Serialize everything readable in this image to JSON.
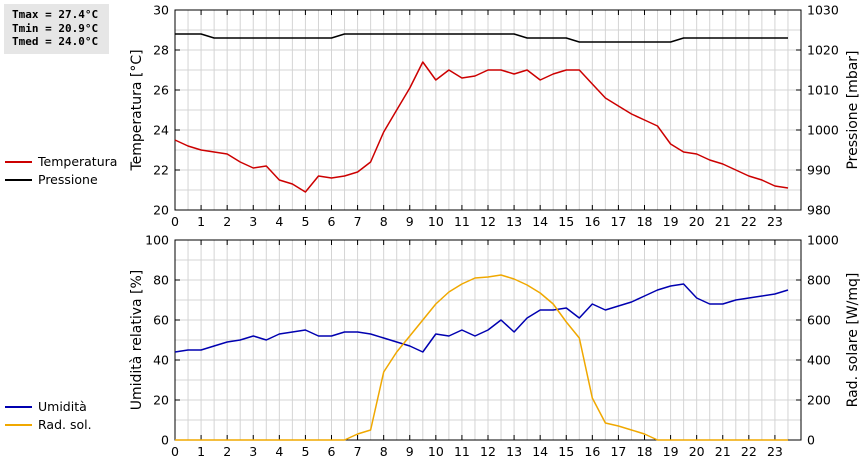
{
  "stats": {
    "tmax": "Tmax = 27.4°C",
    "tmin": "Tmin = 20.9°C",
    "tmed": "Tmed = 24.0°C"
  },
  "colors": {
    "temperatura": "#cc0000",
    "pressione": "#000000",
    "umidita": "#0000b0",
    "radiazione": "#f0a800",
    "grid": "#d4d4d4"
  },
  "chart_data": [
    {
      "type": "line",
      "xlim": [
        0,
        24
      ],
      "xticks": [
        0,
        1,
        2,
        3,
        4,
        5,
        6,
        7,
        8,
        9,
        10,
        11,
        12,
        13,
        14,
        15,
        16,
        17,
        18,
        19,
        20,
        21,
        22,
        23
      ],
      "ylabel_left": "Temperatura [°C]",
      "ylabel_right": "Pressione [mbar]",
      "ylim_left": [
        20,
        30
      ],
      "yticks_left": [
        20,
        22,
        24,
        26,
        28,
        30
      ],
      "ylim_right": [
        980,
        1030
      ],
      "yticks_right": [
        980,
        990,
        1000,
        1010,
        1020,
        1030
      ],
      "legend_placement": "left",
      "grid": true,
      "series": [
        {
          "name": "Temperatura",
          "axis": "left",
          "color": "#cc0000",
          "x": [
            0,
            0.5,
            1,
            1.5,
            2,
            2.5,
            3,
            3.5,
            4,
            4.5,
            5,
            5.5,
            6,
            6.5,
            7,
            7.5,
            8,
            8.5,
            9,
            9.5,
            10,
            10.5,
            11,
            11.5,
            12,
            12.5,
            13,
            13.5,
            14,
            14.5,
            15,
            15.5,
            16,
            16.5,
            17,
            17.5,
            18,
            18.5,
            19,
            19.5,
            20,
            20.5,
            21,
            21.5,
            22,
            22.5,
            23,
            23.5
          ],
          "y": [
            23.5,
            23.2,
            23.0,
            22.9,
            22.8,
            22.4,
            22.1,
            22.2,
            21.5,
            21.3,
            20.9,
            21.7,
            21.6,
            21.7,
            21.9,
            22.4,
            23.9,
            25.0,
            26.1,
            27.4,
            26.5,
            27.0,
            26.6,
            26.7,
            27.0,
            27.0,
            26.8,
            27.0,
            26.5,
            26.8,
            27.0,
            27.0,
            26.3,
            25.6,
            25.2,
            24.8,
            24.5,
            24.2,
            23.3,
            22.9,
            22.8,
            22.5,
            22.3,
            22.0,
            21.7,
            21.5,
            21.2,
            21.1
          ]
        },
        {
          "name": "Pressione",
          "axis": "right",
          "color": "#000000",
          "x": [
            0,
            1,
            1.5,
            6,
            6.5,
            13,
            13.5,
            15,
            15.5,
            19,
            19.5,
            23.5
          ],
          "y": [
            1024,
            1024,
            1023,
            1023,
            1024,
            1024,
            1023,
            1023,
            1022,
            1022,
            1023,
            1023
          ]
        }
      ]
    },
    {
      "type": "line",
      "xlim": [
        0,
        24
      ],
      "xticks": [
        0,
        1,
        2,
        3,
        4,
        5,
        6,
        7,
        8,
        9,
        10,
        11,
        12,
        13,
        14,
        15,
        16,
        17,
        18,
        19,
        20,
        21,
        22,
        23
      ],
      "ylabel_left": "Umidità relativa [%]",
      "ylabel_right": "Rad. solare [W/mq]",
      "ylim_left": [
        0,
        100
      ],
      "yticks_left": [
        0,
        20,
        40,
        60,
        80,
        100
      ],
      "ylim_right": [
        0,
        1000
      ],
      "yticks_right": [
        0,
        200,
        400,
        600,
        800,
        1000
      ],
      "legend_placement": "left",
      "grid": true,
      "series": [
        {
          "name": "Umidità",
          "axis": "left",
          "color": "#0000b0",
          "x": [
            0,
            0.5,
            1,
            1.5,
            2,
            2.5,
            3,
            3.5,
            4,
            4.5,
            5,
            5.5,
            6,
            6.5,
            7,
            7.5,
            8,
            8.5,
            9,
            9.5,
            10,
            10.5,
            11,
            11.5,
            12,
            12.5,
            13,
            13.5,
            14,
            14.5,
            15,
            15.5,
            16,
            16.5,
            17,
            17.5,
            18,
            18.5,
            19,
            19.5,
            20,
            20.5,
            21,
            21.5,
            22,
            22.5,
            23,
            23.5
          ],
          "y": [
            44,
            45,
            45,
            47,
            49,
            50,
            52,
            50,
            53,
            54,
            55,
            52,
            52,
            54,
            54,
            53,
            51,
            49,
            47,
            44,
            53,
            52,
            55,
            52,
            55,
            60,
            54,
            61,
            65,
            65,
            66,
            61,
            68,
            65,
            67,
            69,
            72,
            75,
            77,
            78,
            71,
            68,
            68,
            70,
            71,
            72,
            73,
            75
          ]
        },
        {
          "name": "Rad. sol.",
          "axis": "right",
          "color": "#f0a800",
          "x": [
            0,
            6.5,
            7,
            7.5,
            8,
            8.5,
            9,
            9.5,
            10,
            10.5,
            11,
            11.5,
            12,
            12.5,
            13,
            13.5,
            14,
            14.5,
            15,
            15.5,
            16,
            16.5,
            17,
            17.5,
            18,
            18.5,
            23.5
          ],
          "y": [
            0,
            0,
            30,
            50,
            340,
            440,
            520,
            600,
            680,
            740,
            780,
            810,
            815,
            825,
            805,
            775,
            735,
            680,
            590,
            510,
            210,
            85,
            70,
            50,
            30,
            0,
            0
          ]
        }
      ]
    }
  ]
}
